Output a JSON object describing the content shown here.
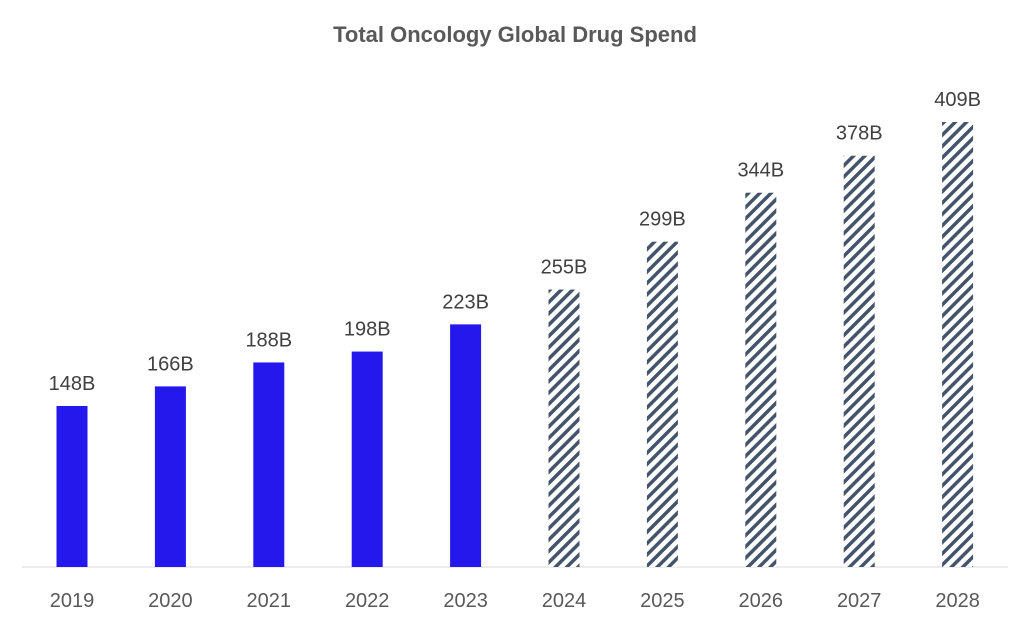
{
  "chart_data": {
    "type": "bar",
    "title": "Total Oncology Global Drug Spend",
    "xlabel": "",
    "ylabel": "",
    "categories": [
      "2019",
      "2020",
      "2021",
      "2022",
      "2023",
      "2024",
      "2025",
      "2026",
      "2027",
      "2028"
    ],
    "values": [
      148,
      166,
      188,
      198,
      223,
      255,
      299,
      344,
      378,
      409
    ],
    "data_labels": [
      "148B",
      "166B",
      "188B",
      "198B",
      "223B",
      "255B",
      "299B",
      "344B",
      "378B",
      "409B"
    ],
    "unit": "B",
    "ylim": [
      0,
      409
    ],
    "grid": false,
    "legend": "none",
    "series_style": {
      "actual": {
        "range": [
          "2019",
          "2023"
        ],
        "fill": "solid",
        "color": "#2418EC"
      },
      "forecast": {
        "range": [
          "2024",
          "2028"
        ],
        "fill": "hatched",
        "color": "#44546A"
      }
    }
  }
}
